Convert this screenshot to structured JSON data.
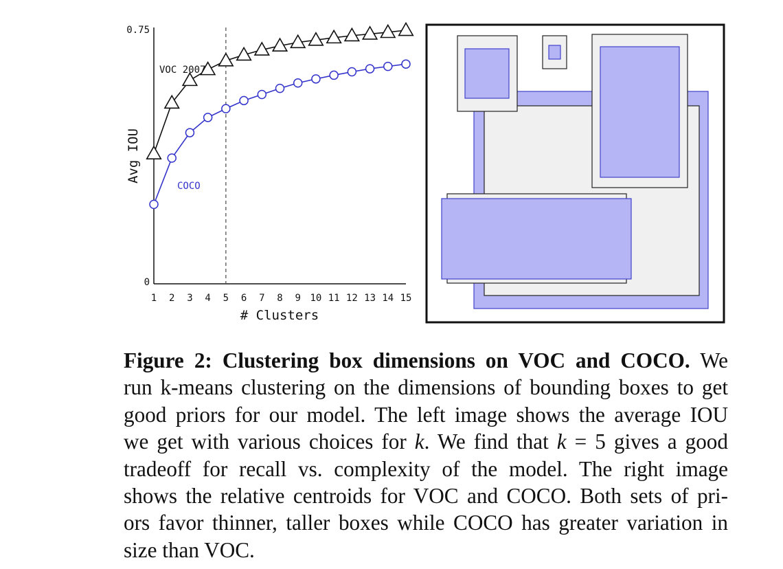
{
  "figure": {
    "chart_data": {
      "type": "line",
      "xlabel": "# Clusters",
      "ylabel": "Avg IOU",
      "x": [
        1,
        2,
        3,
        4,
        5,
        6,
        7,
        8,
        9,
        10,
        11,
        12,
        13,
        14,
        15
      ],
      "ylim": [
        0,
        0.75
      ],
      "y_tick_labels": [
        "0.75",
        "0"
      ],
      "x_tick_labels": [
        "1",
        "2",
        "3",
        "4",
        "5",
        "6",
        "7",
        "8",
        "9",
        "10",
        "11",
        "12",
        "13",
        "14",
        "15"
      ],
      "reference_line_x": 5,
      "grid": false,
      "series": [
        {
          "name": "VOC 2007",
          "marker": "triangle",
          "color": "#111111",
          "values": [
            0.385,
            0.535,
            0.602,
            0.634,
            0.66,
            0.677,
            0.692,
            0.704,
            0.714,
            0.721,
            0.728,
            0.734,
            0.739,
            0.744,
            0.75
          ]
        },
        {
          "name": "COCO",
          "marker": "circle",
          "color": "#3333cc",
          "values": [
            0.235,
            0.372,
            0.447,
            0.492,
            0.518,
            0.542,
            0.56,
            0.578,
            0.594,
            0.606,
            0.617,
            0.627,
            0.636,
            0.643,
            0.65
          ]
        }
      ]
    },
    "centroids_panel": {
      "voc_color": "#f0f0f0",
      "coco_color": "#b5b5f5"
    }
  },
  "caption": {
    "label": "Figure 2:",
    "title": "Clustering box dimensions on VOC and COCO.",
    "lines": [
      " We",
      "run k-means clustering on the dimensions of bounding boxes to get",
      "good priors for our model. The left image shows the average IOU",
      "we get with various choices for ",
      ". We find that ",
      " = 5 gives a good",
      "tradeoff for recall vs.  complexity of the model.  The right image",
      "shows the relative centroids for VOC and COCO. Both sets of pri-",
      "ors favor thinner, taller boxes while COCO has greater variation in",
      "size than VOC."
    ],
    "k_symbol": "k"
  }
}
